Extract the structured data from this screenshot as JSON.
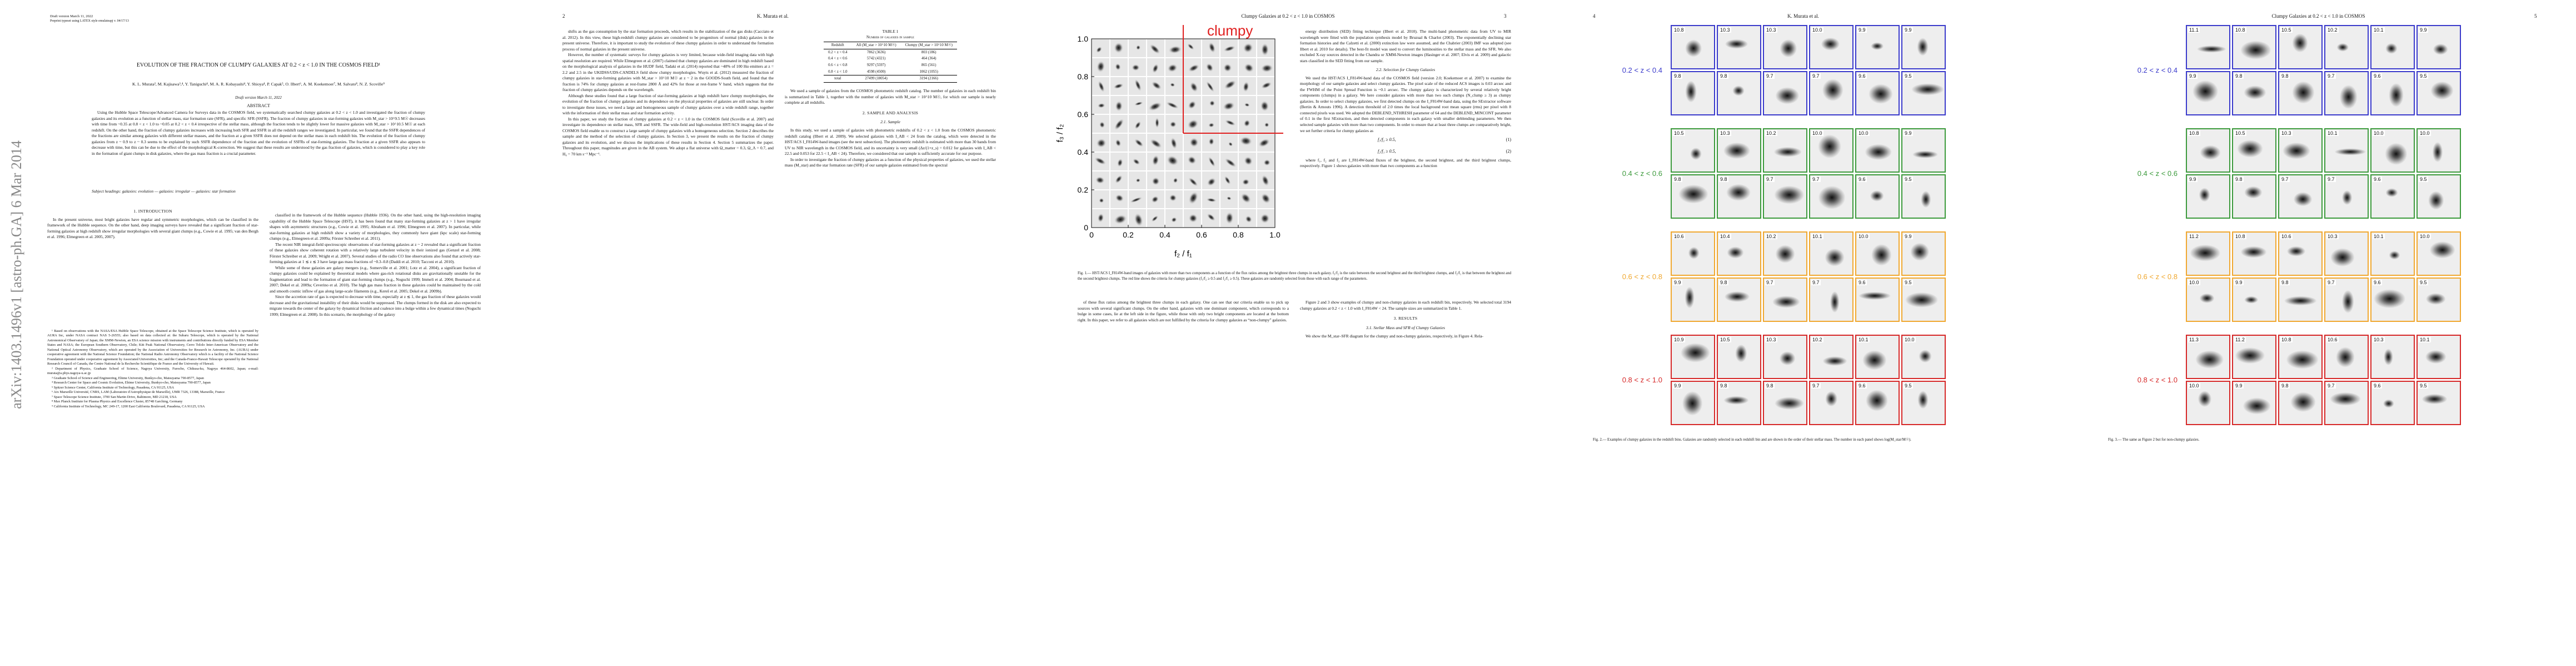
{
  "arxiv_stamp": "arXiv:1403.1496v1  [astro-ph.GA]  6 Mar 2014",
  "page1": {
    "draft_line": "Draft version March 11, 2022",
    "preprint_line": "Preprint typeset using LATEX style emulateapj v. 04/17/13",
    "title": "EVOLUTION OF THE FRACTION OF CLUMPY GALAXIES AT 0.2 < z < 1.0 IN THE COSMOS FIELD¹",
    "authors": "K. L. Murata², M. Kajisawa³,⁴, Y. Taniguchi⁴, M. A. R. Kobayashi⁴, Y. Shioya⁴, P. Capak⁵, O. Ilbert⁶, A. M. Koekemoer⁷, M. Salvato⁸, N. Z. Scoville⁹",
    "draft_date": "Draft version March 11, 2022",
    "abstract_heading": "ABSTRACT",
    "abstract": "Using the Hubble Space Telescope/Advanced Camera for Surveys data in the COSMOS field, we systematically searched clumpy galaxies at 0.2 < z < 1.0 and investigated the fraction of clumpy galaxies and its evolution as a function of stellar mass, star formation rate (SFR), and specific SFR (SSFR). The fraction of clumpy galaxies in star-forming galaxies with M_star > 10^9.5 M☉ decreases with time from ~0.35 at 0.8 < z < 1.0 to ~0.05 at 0.2 < z < 0.4 irrespective of the stellar mass, although the fraction tends to be slightly lower for massive galaxies with M_star > 10^10.5 M☉ at each redshift. On the other hand, the fraction of clumpy galaxies increases with increasing both SFR and SSFR in all the redshift ranges we investigated. In particular, we found that the SSFR dependences of the fractions are similar among galaxies with different stellar masses, and the fraction at a given SSFR does not depend on the stellar mass in each redshift bin. The evolution of the fraction of clumpy galaxies from z ~ 0.9 to z ~ 0.3 seems to be explained by such SSFR dependence of the fraction and the evolution of SSFRs of star-forming galaxies. The fraction at a given SSFR also appears to decrease with time, but this can be due to the effect of the morphological K-correction. We suggest that these results are understood by the gas fraction of galaxies, which is considered to play a key role in the formation of giant clumps in disk galaxies, where the gas mass fraction is a crucial parameter.",
    "subject_headings": "Subject headings: galaxies: evolution — galaxies: irregular — galaxies: star formation",
    "sec1_heading": "1. INTRODUCTION",
    "col1": [
      "In the present universe, most bright galaxies have regular and symmetric morphologies, which can be classified in the framework of the Hubble sequence. On the other hand, deep imaging surveys have revealed that a significant fraction of star-forming galaxies at high redshift show irregular morphologies with several giant clumps (e.g., Cowie et al. 1995; van den Bergh et al. 1996; Elmegreen et al. 2005, 2007)."
    ],
    "footnotes": [
      "¹ Based on observations with the NASA/ESA Hubble Space Telescope, obtained at the Space Telescope Science Institute, which is operated by AURA Inc, under NASA contract NAS 5-26555; also based on data collected at: the Subaru Telescope, which is operated by the National Astronomical Observatory of Japan; the XMM-Newton, an ESA science mission with instruments and contributions directly funded by ESA Member States and NASA; the European Southern Observatory, Chile; Kitt Peak National Observatory, Cerro Tololo Inter-American Observatory and the National Optical Astronomy Observatory, which are operated by the Association of Universities for Research in Astronomy, Inc. (AURA) under cooperative agreement with the National Science Foundation; the National Radio Astronomy Observatory which is a facility of the National Science Foundation operated under cooperative agreement by Associated Universities, Inc; and the Canada-France-Hawaii Telescope operated by the National Research Council of Canada, the Centre National de la Recherche Scientifique de France and the University of Hawaii.",
      "² Department of Physics, Graduate School of Science, Nagoya University, Furocho, Chikusa-ku, Nagoya 464-8602, Japan; e-mail: murata@a.phys.nagoya-u.ac.jp",
      "³ Graduate School of Science and Engineering, Ehime University, Bunkyo-cho, Matsuyama 790-8577, Japan",
      "⁴ Research Center for Space and Cosmic Evolution, Ehime University, Bunkyo-cho, Matsuyama 790-8577, Japan",
      "⁵ Spitzer Science Center, California Institute of Technology, Pasadena, CA 91125, USA",
      "⁶ Aix Marseille Université, CNRS, LAM (Laboratoire d'Astrophysique de Marseille), UMR 7326, 13388, Marseille, France",
      "⁷ Space Telescope Science Institute, 3700 San Martin Drive, Baltimore, MD 21218, USA",
      "⁸ Max Planck Institute for Plasma Physics and Excellence Cluster, 85748 Garching, Germany",
      "⁹ California Institute of Technology, MC 249-17, 1200 East California Boulevard, Pasadena, CA 91125, USA"
    ],
    "col2": [
      "classified in the framework of the Hubble sequence (Hubble 1936). On the other hand, using the high-resolution imaging capability of the Hubble Space Telescope (HST), it has been found that many star-forming galaxies at z > 1 have irregular shapes with asymmetric structures (e.g., Cowie et al. 1995; Abraham et al. 1996; Elmegreen et al. 2007). In particular, while star-forming galaxies at high redshift show a variety of morphologies, they commonly have giant (kpc scale) star-forming clumps (e.g., Elmegreen et al. 2009a; Förster Schreiber et al. 2011).",
      "The recent NIR integral-field spectroscopic observations of star-forming galaxies at z ~ 2 revealed that a significant fraction of these galaxies show coherent rotation with a relatively large turbulent velocity in their ionized gas (Genzel et al. 2008; Förster Schreiber et al. 2009; Wright et al. 2007). Several studies of the radio CO line observations also found that actively star-forming galaxies at 1 ≲ z ≲ 3 have large gas mass fractions of ~0.3–0.8 (Daddi et al. 2010; Tacconi et al. 2010).",
      "While some of these galaxies are galaxy mergers (e.g., Somerville et al. 2001; Lotz et al. 2004), a significant fraction of clumpy galaxies could be explained by theoretical models where gas-rich rotational disks are gravitationally unstable for the fragmentation and lead to the formation of giant star-forming clumps (e.g., Noguchi 1999; Immeli et al. 2004; Bournaud et al. 2007; Dekel et al. 2009a; Ceverino et al. 2010). The high gas mass fraction in these galaxies could be maintained by the cold and smooth cosmic inflow of gas along large-scale filaments (e.g., Kereš et al. 2005; Dekel et al. 2009b).",
      "Since the accretion rate of gas is expected to decrease with time, especially at z ≲ 1, the gas fraction of these galaxies would decrease and the gravitational instability of their disks would be suppressed. The clumps formed in the disk are also expected to migrate towards the center of the galaxy by dynamical friction and coalesce into a bulge within a few dynamical times (Noguchi 1999; Elmegreen et al. 2008). In this scenario, the morphology of the galaxy"
    ]
  },
  "page2": {
    "page_number": "2",
    "running_head": "K. Murata et al.",
    "col1": [
      "shifts as the gas consumption by the star formation proceeds, which results in the stabilization of the gas disks (Cacciato et al. 2012). In this view, these high-redshift clumpy galaxies are considered to be progenitors of normal (disk) galaxies in the present universe. Therefore, it is important to study the evolution of these clumpy galaxies in order to understand the formation process of normal galaxies in the present universe.",
      "However, the number of systematic surveys for clumpy galaxies is very limited, because wide-field imaging data with high spatial resolution are required. While Elmegreen et al. (2007) claimed that clumpy galaxies are dominated in high redshift based on the morphological analysis of galaxies in the HUDF field, Tadaki et al. (2014) reported that ~40% of 100 Hα emitters at z = 2.2 and 2.5 in the UKIDSS/UDS-CANDELS field show clumpy morphologies. Wuyts et al. (2012) measured the fraction of clumpy galaxies in star-forming galaxies with M_star > 10^10 M☉ at z ~ 2 in the GOODS-South field, and found that the fraction is 74% for clumpy galaxies at rest-frame 2800 Å and 42% for those at rest-frame V band, which suggests that the fraction of clumpy galaxies depends on the wavelength.",
      "Although these studies found that a large fraction of star-forming galaxies at high redshift have clumpy morphologies, the evolution of the fraction of clumpy galaxies and its dependence on the physical properties of galaxies are still unclear. In order to investigate these issues, we need a large and homogeneous sample of clumpy galaxies over a wide redshift range, together with the information of their stellar mass and star formation activity.",
      "In this paper, we study the fraction of clumpy galaxies at 0.2 < z < 1.0 in the COSMOS field (Scoville et al. 2007) and investigate its dependence on stellar mass, SFR and SSFR. The wide-field and high-resolution HST/ACS imaging data of the COSMOS field enable us to construct a large sample of clumpy galaxies with a homogeneous selection. Section 2 describes the sample and the method of the selection of clumpy galaxies. In Section 3, we present the results on the fraction of clumpy galaxies and its evolution, and we discuss the implications of these results in Section 4. Section 5 summarizes the paper. Throughout this paper, magnitudes are given in the AB system. We adopt a flat universe with Ω_matter = 0.3, Ω_Λ = 0.7, and H₀ = 70 km s⁻¹ Mpc⁻¹."
    ],
    "table": {
      "title": "TABLE 1",
      "caption": "Number of galaxies in sample",
      "columns": [
        "Redshift",
        "All (M_star > 10^10 M☉)",
        "Clumpy (M_star > 10^10 M☉)"
      ],
      "rows": [
        [
          "0.2 < z < 0.4",
          "7862 (3636)",
          "803 (186)"
        ],
        [
          "0.4 < z < 0.6",
          "5742 (4321)",
          "464 (364)"
        ],
        [
          "0.6 < z < 0.8",
          "9297 (5597)",
          "865 (561)"
        ],
        [
          "0.8 < z < 1.0",
          "4598 (4500)",
          "1062 (1055)"
        ],
        [
          "total",
          "27499 (18054)",
          "3194 (2166)"
        ]
      ]
    },
    "col2": [
      "We used a sample of galaxies from the COSMOS photometric redshift catalog. The number of galaxies in each redshift bin is summarized in Table 1, together with the number of galaxies with M_star > 10^10 M☉, for which our sample is nearly complete at all redshifts."
    ],
    "sec2_heading": "2. SAMPLE AND ANALYSIS",
    "sec21_heading": "2.1. Sample",
    "col2b": [
      "In this study, we used a sample of galaxies with photometric redshifts of 0.2 < z < 1.0 from the COSMOS photometric redshift catalog (Ilbert et al. 2009). We selected galaxies with I_AB < 24 from the catalog, which were detected in the HST/ACS I_F814W-band images (see the next subsection). The photometric redshift is estimated with more than 30 bands from UV to NIR wavelength in the COSMOS field, and its uncertainty is very small (Δz/(1+z_s) = 0.012 for galaxies with I_AB < 22.5 and 0.053 for 22.5 < I_AB < 24). Therefore, we considered that our sample is sufficiently accurate for our purpose.",
      "In order to investigate the fraction of clumpy galaxies as a function of the physical properties of galaxies, we used the stellar mass (M_star) and the star formation rate (SFR) of our sample galaxies estimated from the spectral"
    ]
  },
  "page3": {
    "running_head": "Clumpy Galaxies at 0.2 < z < 1.0 in COSMOS",
    "page_number": "3",
    "figure": {
      "label": "clumpy",
      "xticks": [
        "0",
        "0.2",
        "0.4",
        "0.6",
        "0.8",
        "1.0"
      ],
      "yticks": [
        "0",
        "0.2",
        "0.4",
        "0.6",
        "0.8",
        "1.0"
      ],
      "xlabel": "f₂ / f₁",
      "ylabel": "f₃ / f₂"
    },
    "col2": [
      "energy distribution (SED) fitting technique (Ilbert et al. 2010). The multi-band photometric data from UV to MIR wavelength were fitted with the population synthesis model by Bruzual & Charlot (2003). The exponentially declining star formation histories and the Calzetti et al. (2000) extinction law were assumed, and the Chabrier (2003) IMF was adopted (see Ilbert et al. 2010 for details). The best-fit model was used to convert the luminosities to the stellar mass and the SFR. We also excluded X-ray sources detected in the Chandra or XMM-Newton images (Hasinger et al. 2007; Elvis et al. 2009) and galactic stars classified in the SED fitting from our sample."
    ],
    "sec22_heading": "2.2. Selection for Clumpy Galaxies",
    "col2b": [
      "We used the HST/ACS I_F814W-band data of the COSMOS field (version 2.0; Koekemoer et al. 2007) to examine the morphology of our sample galaxies and select clumpy galaxies. The pixel scale of the reduced ACS images is 0.03 arcsec and the FWHM of the Point Spread Function is ~0.1 arcsec. The clumpy galaxy is characterized by several relatively bright components (clumps) in a galaxy. We here consider galaxies with more than two such clumps (N_clump ≥ 3) as clumpy galaxies. In order to select clumpy galaxies, we first detected clumps on the I_F814W-band data, using the SExtractor software (Bertin & Arnouts 1996). A detection threshold of 2.0 times the local background root mean square (rms) per pixel with 8 connected pixels was used. We adopted the DEBLEND_NTHRESH parameter of 64 and the DEBLEND_MINCONT parameter of 0.1 in the first SExtraction, and then detected components in each galaxy with smaller deblending parameters. We then selected sample galaxies with more than two components. In order to ensure that at least three clumps are comparatively bright, we set further criteria for clumpy galaxies as"
    ],
    "eq1": "f₃/f₂ ≥ 0.5,",
    "eq1_num": "(1)",
    "eq2": "f₂/f₁ ≥ 0.5,",
    "eq2_num": "(2)",
    "col2c": [
      "where f₁, f₂ and f₃ are I_F814W-band fluxes of the brightest, the second brightest, and the third brightest clumps, respectively. Figure 1 shows galaxies with more than two components as a function"
    ],
    "caption": "Fig. 1.— HST/ACS I_F814W-band images of galaxies with more than two components as a function of the flux ratios among the brightest three clumps in each galaxy. f₃/f₂ is the ratio between the second brightest and the third brightest clumps, and f₂/f₁ is that between the brightest and the second brightest clumps. The red line shows the criteria for clumpy galaxies (f₃/f₂ ≥ 0.5 and f₂/f₁ ≥ 0.5). These galaxies are randomly selected from those with each range of the parameters.",
    "bottom_col1": [
      "of these flux ratios among the brightest three clumps in each galaxy. One can see that our criteria enable us to pick up sources with several significant clumps. On the other hand, galaxies with one dominant component, which corresponds to a bulge in some cases, lie at the left side in the figure, while those with only two bright components are located at the bottom right. In this paper, we refer to all galaxies which are not fulfilled by the criteria for clumpy galaxies as “non-clumpy” galaxies."
    ],
    "bottom_col2": [
      "Figure 2 and 3 show examples of clumpy and non-clumpy galaxies in each redshift bin, respectively. We selected total 3194 clumpy galaxies at 0.2 < z < 1.0 with I_F814W < 24. The sample sizes are summarized in Table 1."
    ],
    "sec3_heading": "3. RESULTS",
    "sec31_heading": "3.1. Stellar Mass and SFR of Clumpy Galaxies",
    "bottom_col2b": [
      "We show the M_star–SFR diagram for the clumpy and non-clumpy galaxies, respectively, in Figure 4. Rela-"
    ]
  },
  "page4": {
    "page_number": "4",
    "running_head": "K. Murata et al.",
    "bins": [
      {
        "label": "0.2 < z < 0.4",
        "color": "#3a3acb",
        "masses": [
          "10.8",
          "10.3",
          "10.3",
          "10.0",
          "9.9",
          "9.9",
          "9.8",
          "9.8",
          "9.7",
          "9.7",
          "9.6",
          "9.5"
        ]
      },
      {
        "label": "0.4 < z < 0.6",
        "color": "#3c9a3c",
        "masses": [
          "10.5",
          "10.3",
          "10.2",
          "10.0",
          "10.0",
          "9.9",
          "9.8",
          "9.8",
          "9.7",
          "9.7",
          "9.6",
          "9.5"
        ]
      },
      {
        "label": "0.6 < z < 0.8",
        "color": "#f0a830",
        "masses": [
          "10.6",
          "10.4",
          "10.2",
          "10.1",
          "10.0",
          "9.9",
          "9.9",
          "9.8",
          "9.7",
          "9.7",
          "9.6",
          "9.5"
        ]
      },
      {
        "label": "0.8 < z < 1.0",
        "color": "#d62828",
        "masses": [
          "10.9",
          "10.5",
          "10.3",
          "10.2",
          "10.1",
          "10.0",
          "9.9",
          "9.8",
          "9.8",
          "9.7",
          "9.6",
          "9.5"
        ]
      }
    ],
    "caption": "Fig. 2.— Examples of clumpy galaxies in the redshift bins. Galaxies are randomly selected in each redshift bin and are shown in the order of their stellar mass. The number in each panel shows log(M_star/M☉)."
  },
  "page5": {
    "running_head": "Clumpy Galaxies at 0.2 < z < 1.0 in COSMOS",
    "page_number": "5",
    "bins": [
      {
        "label": "0.2 < z < 0.4",
        "color": "#3a3acb",
        "masses": [
          "11.1",
          "10.8",
          "10.5",
          "10.2",
          "10.1",
          "9.9",
          "9.9",
          "9.8",
          "9.8",
          "9.7",
          "9.6",
          "9.5"
        ]
      },
      {
        "label": "0.4 < z < 0.6",
        "color": "#3c9a3c",
        "masses": [
          "10.8",
          "10.5",
          "10.3",
          "10.1",
          "10.0",
          "10.0",
          "9.9",
          "9.8",
          "9.7",
          "9.7",
          "9.6",
          "9.5"
        ]
      },
      {
        "label": "0.6 < z < 0.8",
        "color": "#f0a830",
        "masses": [
          "11.2",
          "10.8",
          "10.6",
          "10.3",
          "10.1",
          "10.0",
          "10.0",
          "9.9",
          "9.8",
          "9.7",
          "9.6",
          "9.5"
        ]
      },
      {
        "label": "0.8 < z < 1.0",
        "color": "#d62828",
        "masses": [
          "11.3",
          "11.2",
          "10.8",
          "10.6",
          "10.3",
          "10.1",
          "10.0",
          "9.9",
          "9.8",
          "9.7",
          "9.6",
          "9.5"
        ]
      }
    ],
    "caption": "Fig. 3.— The same as Figure 2 but for non-clumpy galaxies."
  }
}
